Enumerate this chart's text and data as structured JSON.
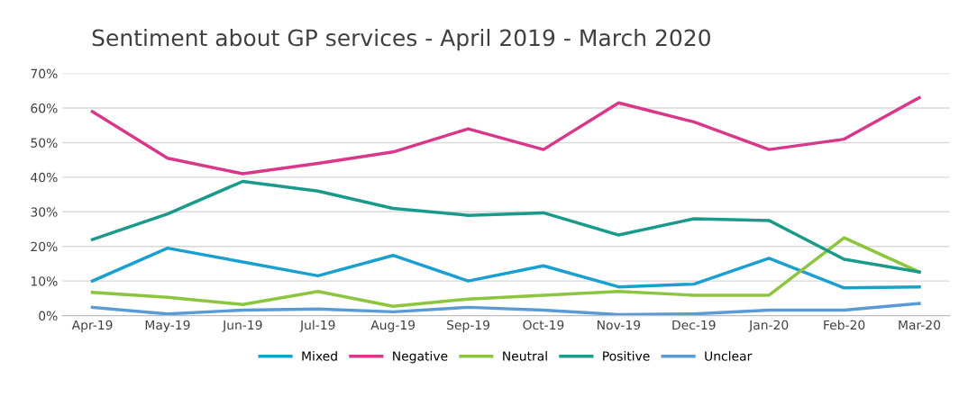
{
  "chart_data": {
    "type": "line",
    "title": "Sentiment about GP services - April 2019 - March 2020",
    "categories": [
      "Apr-19",
      "May-19",
      "Jun-19",
      "Jul-19",
      "Aug-19",
      "Sep-19",
      "Oct-19",
      "Nov-19",
      "Dec-19",
      "Jan-20",
      "Feb-20",
      "Mar-20"
    ],
    "series": [
      {
        "name": "Mixed",
        "color": "#1aa0d0",
        "values": [
          10,
          19.5,
          15.5,
          11.5,
          17.4,
          10,
          14.4,
          8.3,
          9.1,
          16.6,
          8,
          8.3
        ]
      },
      {
        "name": "Negative",
        "color": "#d9378a",
        "values": [
          59,
          45.5,
          41,
          44,
          47.3,
          54,
          48,
          61.5,
          56,
          48,
          51,
          63
        ]
      },
      {
        "name": "Neutral",
        "color": "#8cc63f",
        "values": [
          6.7,
          5.3,
          3.2,
          7,
          2.7,
          4.8,
          5.9,
          7,
          5.9,
          5.9,
          22.5,
          12.6
        ]
      },
      {
        "name": "Positive",
        "color": "#1a9a8a",
        "values": [
          22,
          29.4,
          38.8,
          36,
          31,
          29,
          29.7,
          23.3,
          28,
          27.5,
          16.3,
          12.6
        ]
      },
      {
        "name": "Unclear",
        "color": "#5b9bd5",
        "values": [
          2.4,
          0.5,
          1.6,
          1.9,
          1.1,
          2.4,
          1.6,
          0.3,
          0.5,
          1.6,
          1.6,
          3.5
        ]
      }
    ],
    "ylim": [
      0,
      70
    ],
    "yticks": [
      {
        "value": 0,
        "label": "0%"
      },
      {
        "value": 10,
        "label": "10%"
      },
      {
        "value": 20,
        "label": "20%"
      },
      {
        "value": 30,
        "label": "30%"
      },
      {
        "value": 40,
        "label": "40%"
      },
      {
        "value": 50,
        "label": "50%"
      },
      {
        "value": 60,
        "label": "60%"
      },
      {
        "value": 70,
        "label": "70%"
      }
    ],
    "grid": "y",
    "legend": "bottom",
    "marker": "none",
    "line_style": "solid"
  }
}
